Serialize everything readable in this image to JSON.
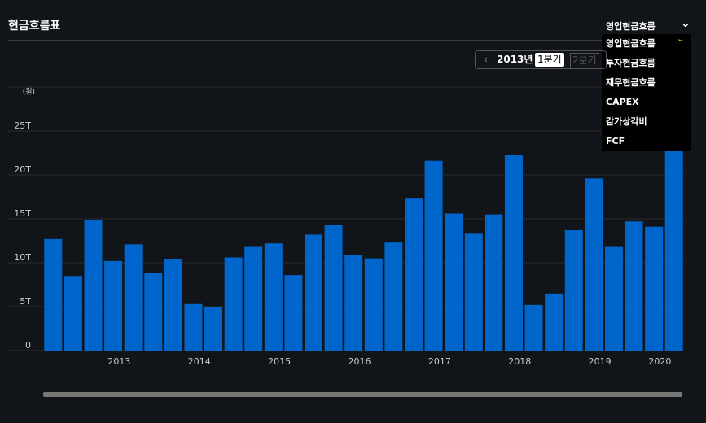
{
  "header": {
    "title": "현금흐름표"
  },
  "dropdown": {
    "selected": "영업현금흐름",
    "options": [
      "영업현금흐름",
      "투자현금흐름",
      "재무현금흐름",
      "CAPEX",
      "감가상각비",
      "FCF"
    ]
  },
  "period": {
    "year": "2013년",
    "quarters": [
      "1분기",
      "2분기"
    ]
  },
  "chart_data": {
    "type": "bar",
    "y_label": "(원)",
    "color": "#0066cc",
    "categories": [
      null,
      null,
      null,
      null,
      "2013",
      null,
      null,
      null,
      "2014",
      null,
      null,
      null,
      "2015",
      null,
      null,
      null,
      "2016",
      null,
      null,
      null,
      "2017",
      null,
      null,
      null,
      "2018",
      null,
      null,
      null,
      "2019",
      null,
      null,
      "2020"
    ],
    "values": [
      12.7,
      8.5,
      14.9,
      10.2,
      12.1,
      8.8,
      10.4,
      5.3,
      5.0,
      10.6,
      11.8,
      12.2,
      8.6,
      13.2,
      14.3,
      10.9,
      10.5,
      12.3,
      17.3,
      21.6,
      15.6,
      13.3,
      15.5,
      22.3,
      5.2,
      6.5,
      13.7,
      19.6,
      11.8,
      14.7,
      14.1,
      23
    ],
    "ylim": [
      0,
      30
    ],
    "yticks": [
      0,
      {
        "value": 5,
        "label": "5T"
      },
      {
        "value": 10,
        "label": "10T"
      },
      {
        "value": 15,
        "label": "15T"
      },
      {
        "value": 20,
        "label": "20T"
      },
      {
        "value": 25,
        "label": "25T"
      }
    ],
    "grid": true
  }
}
